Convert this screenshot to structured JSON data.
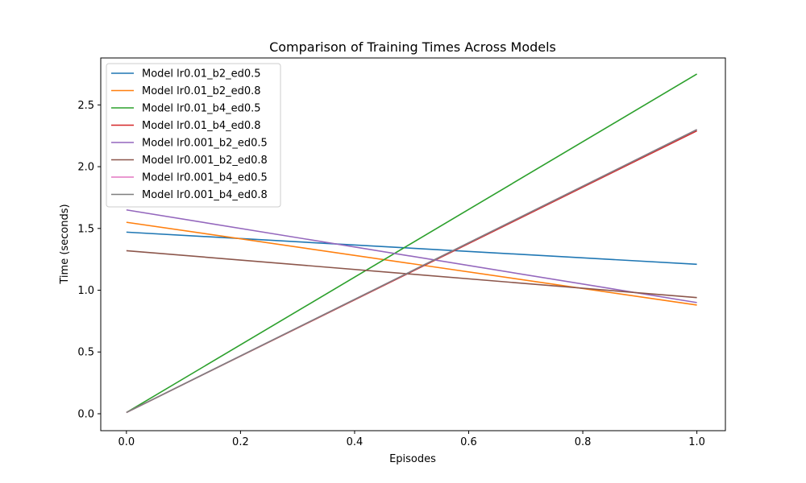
{
  "chart_data": {
    "type": "line",
    "title": "Comparison of Training Times Across Models",
    "xlabel": "Episodes",
    "ylabel": "Time (seconds)",
    "xlim": [
      -0.045,
      1.05
    ],
    "ylim": [
      -0.137,
      2.88
    ],
    "x_ticks": [
      0.0,
      0.2,
      0.4,
      0.6,
      0.8,
      1.0
    ],
    "x_tick_labels": [
      "0.0",
      "0.2",
      "0.4",
      "0.6",
      "0.8",
      "1.0"
    ],
    "y_ticks": [
      0.0,
      0.5,
      1.0,
      1.5,
      2.0,
      2.5
    ],
    "y_tick_labels": [
      "0.0",
      "0.5",
      "1.0",
      "1.5",
      "2.0",
      "2.5"
    ],
    "grid": false,
    "legend_position": "upper-left",
    "x": [
      0,
      1
    ],
    "series": [
      {
        "name": "Model lr0.01_b2_ed0.5",
        "values": [
          1.47,
          1.21
        ],
        "color": "#1f77b4"
      },
      {
        "name": "Model lr0.01_b2_ed0.8",
        "values": [
          1.55,
          0.88
        ],
        "color": "#ff7f0e"
      },
      {
        "name": "Model lr0.01_b4_ed0.5",
        "values": [
          0.01,
          2.75
        ],
        "color": "#2ca02c"
      },
      {
        "name": "Model lr0.01_b4_ed0.8",
        "values": [
          0.01,
          2.29
        ],
        "color": "#d62728"
      },
      {
        "name": "Model lr0.001_b2_ed0.5",
        "values": [
          1.65,
          0.9
        ],
        "color": "#9467bd"
      },
      {
        "name": "Model lr0.001_b2_ed0.8",
        "values": [
          1.32,
          0.94
        ],
        "color": "#8c564b"
      },
      {
        "name": "Model lr0.001_b4_ed0.5",
        "values": [
          0.01,
          2.3
        ],
        "color": "#e377c2"
      },
      {
        "name": "Model lr0.001_b4_ed0.8",
        "values": [
          0.01,
          2.3
        ],
        "color": "#7f7f7f"
      }
    ]
  }
}
